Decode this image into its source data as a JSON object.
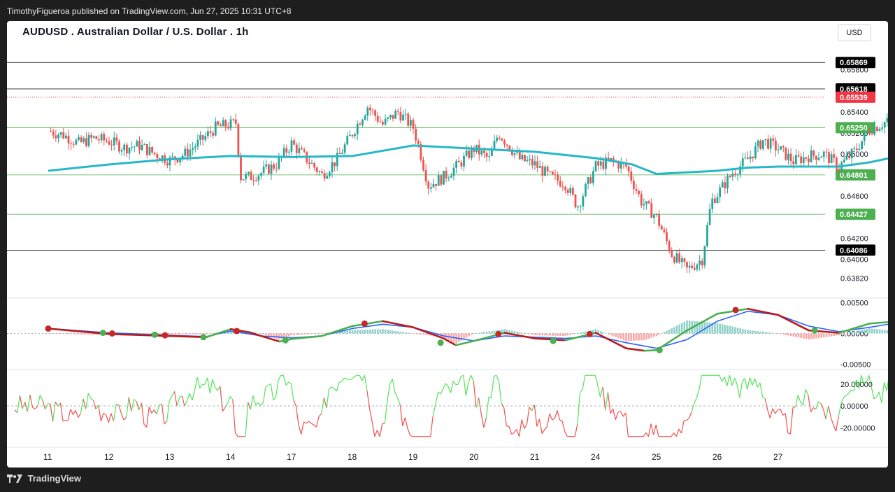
{
  "header": {
    "published": "TimothyFigueroa published on TradingView.com, Jun 27, 2025 10:31 UTC+8"
  },
  "footer": {
    "brand": "TradingView"
  },
  "chart_data": [
    {
      "type": "candlestick",
      "title": "AUDUSD . Australian Dollar / U.S. Dollar . 1h",
      "currency_label": "USD",
      "ylim": [
        0.6365,
        0.6605
      ],
      "y_ticks": [
        "0.65800",
        "0.65400",
        "0.65200",
        "0.65000",
        "0.64600",
        "0.64200",
        "0.64000",
        "0.63820"
      ],
      "x_ticks": [
        "11",
        "12",
        "13",
        "14",
        "17",
        "18",
        "19",
        "20",
        "21",
        "24",
        "25",
        "26",
        "27"
      ],
      "price_levels": [
        {
          "value": "0.65869",
          "color": "#000000"
        },
        {
          "value": "0.65618",
          "color": "#000000"
        },
        {
          "value": "0.65539",
          "color": "#f23645"
        },
        {
          "value": "0.65250",
          "color": "#4caf50"
        },
        {
          "value": "0.64801",
          "color": "#4caf50"
        },
        {
          "value": "0.64427",
          "color": "#4caf50"
        },
        {
          "value": "0.64086",
          "color": "#000000"
        }
      ],
      "moving_average": [
        [
          0,
          0.6484
        ],
        [
          1,
          0.649
        ],
        [
          2,
          0.6495
        ],
        [
          3,
          0.6498
        ],
        [
          4,
          0.6497
        ],
        [
          5,
          0.6498
        ],
        [
          6,
          0.6508
        ],
        [
          7,
          0.6505
        ],
        [
          8,
          0.6502
        ],
        [
          9,
          0.6496
        ],
        [
          9.6,
          0.649
        ],
        [
          10,
          0.6481
        ],
        [
          11,
          0.6484
        ],
        [
          11.5,
          0.6487
        ],
        [
          12,
          0.6488
        ],
        [
          13,
          0.6488
        ],
        [
          13.5,
          0.6492
        ],
        [
          14,
          0.6498
        ]
      ],
      "candle_path": [
        [
          0,
          0.6522
        ],
        [
          0.25,
          0.6518
        ],
        [
          0.5,
          0.651
        ],
        [
          0.75,
          0.6515
        ],
        [
          1,
          0.6512
        ],
        [
          1.25,
          0.6506
        ],
        [
          1.5,
          0.6508
        ],
        [
          1.75,
          0.65
        ],
        [
          2,
          0.6494
        ],
        [
          2.25,
          0.65
        ],
        [
          2.5,
          0.6512
        ],
        [
          2.75,
          0.6525
        ],
        [
          3,
          0.6528
        ],
        [
          3.1,
          0.653
        ],
        [
          3.15,
          0.6478
        ],
        [
          3.3,
          0.6478
        ],
        [
          3.5,
          0.6482
        ],
        [
          3.75,
          0.649
        ],
        [
          4,
          0.651
        ],
        [
          4.25,
          0.6495
        ],
        [
          4.5,
          0.648
        ],
        [
          4.75,
          0.6495
        ],
        [
          5,
          0.652
        ],
        [
          5.25,
          0.6545
        ],
        [
          5.5,
          0.6528
        ],
        [
          5.75,
          0.654
        ],
        [
          6,
          0.6525
        ],
        [
          6.1,
          0.6505
        ],
        [
          6.25,
          0.647
        ],
        [
          6.5,
          0.6478
        ],
        [
          6.75,
          0.649
        ],
        [
          7,
          0.6505
        ],
        [
          7.25,
          0.6495
        ],
        [
          7.4,
          0.652
        ],
        [
          7.75,
          0.6495
        ],
        [
          8,
          0.649
        ],
        [
          8.25,
          0.6478
        ],
        [
          8.5,
          0.6472
        ],
        [
          8.7,
          0.645
        ],
        [
          9,
          0.6488
        ],
        [
          9.25,
          0.6493
        ],
        [
          9.5,
          0.6488
        ],
        [
          9.75,
          0.6455
        ],
        [
          10,
          0.644
        ],
        [
          10.25,
          0.6405
        ],
        [
          10.5,
          0.639
        ],
        [
          10.75,
          0.64
        ],
        [
          10.9,
          0.6455
        ],
        [
          11,
          0.6462
        ],
        [
          11.25,
          0.6482
        ],
        [
          11.5,
          0.6495
        ],
        [
          11.75,
          0.6513
        ],
        [
          12,
          0.6505
        ],
        [
          12.25,
          0.6493
        ],
        [
          12.5,
          0.6498
        ],
        [
          12.75,
          0.65
        ],
        [
          13,
          0.6488
        ],
        [
          13.25,
          0.6502
        ],
        [
          13.5,
          0.6523
        ],
        [
          13.75,
          0.653
        ],
        [
          14,
          0.6548
        ],
        [
          14.2,
          0.656
        ],
        [
          14.35,
          0.6548
        ],
        [
          14.6,
          0.6555
        ]
      ]
    },
    {
      "type": "line",
      "name": "oscillator",
      "ylim": [
        -0.0055,
        0.0055
      ],
      "y_ticks": [
        "0.00500",
        "0.00000",
        "-0.00500"
      ],
      "fast": [
        [
          0,
          0.0008
        ],
        [
          1,
          -0.0001
        ],
        [
          2,
          -0.0004
        ],
        [
          2.6,
          -0.0006
        ],
        [
          3,
          0.0007
        ],
        [
          3.3,
          0.0002
        ],
        [
          3.8,
          -0.0013
        ],
        [
          4,
          -0.0009
        ],
        [
          4.5,
          -0.0004
        ],
        [
          5,
          0.0012
        ],
        [
          5.5,
          0.002
        ],
        [
          6,
          0.001
        ],
        [
          6.5,
          -0.0008
        ],
        [
          6.7,
          -0.0019
        ],
        [
          7,
          -0.0012
        ],
        [
          7.5,
          0.0001
        ],
        [
          8,
          -0.0008
        ],
        [
          8.5,
          -0.0011
        ],
        [
          9,
          0.0001
        ],
        [
          9.5,
          -0.0024
        ],
        [
          9.8,
          -0.0028
        ],
        [
          10,
          -0.0027
        ],
        [
          10.5,
          0.0005
        ],
        [
          11,
          0.0032
        ],
        [
          11.5,
          0.004
        ],
        [
          12,
          0.003
        ],
        [
          12.5,
          0.0005
        ],
        [
          13,
          0.0001
        ],
        [
          13.5,
          0.0016
        ],
        [
          14,
          0.002
        ],
        [
          14.6,
          0.002
        ]
      ],
      "slow": [
        [
          0,
          0.0008
        ],
        [
          1,
          0.0001
        ],
        [
          2,
          -0.0003
        ],
        [
          2.6,
          -0.0005
        ],
        [
          3,
          0.0004
        ],
        [
          3.5,
          -0.0004
        ],
        [
          4,
          -0.0007
        ],
        [
          4.5,
          -0.0004
        ],
        [
          5,
          0.0008
        ],
        [
          5.5,
          0.0015
        ],
        [
          6,
          0.001
        ],
        [
          6.5,
          -0.0004
        ],
        [
          7,
          -0.0012
        ],
        [
          7.5,
          -0.0004
        ],
        [
          8,
          -0.0006
        ],
        [
          8.5,
          -0.0008
        ],
        [
          9,
          -0.0004
        ],
        [
          9.5,
          -0.0015
        ],
        [
          10,
          -0.0024
        ],
        [
          10.5,
          -0.001
        ],
        [
          11,
          0.002
        ],
        [
          11.5,
          0.0036
        ],
        [
          12,
          0.003
        ],
        [
          12.5,
          0.0012
        ],
        [
          13,
          0.0003
        ],
        [
          13.5,
          0.001
        ],
        [
          14,
          0.0018
        ],
        [
          14.6,
          0.0019
        ]
      ],
      "cross_points": [
        {
          "x": 0.0,
          "y": 0.0008,
          "color": "#c62828"
        },
        {
          "x": 0.9,
          "y": 0.0001,
          "color": "#4caf50"
        },
        {
          "x": 1.05,
          "y": 0.0,
          "color": "#c62828"
        },
        {
          "x": 1.75,
          "y": -0.0002,
          "color": "#4caf50"
        },
        {
          "x": 1.92,
          "y": -0.0003,
          "color": "#c62828"
        },
        {
          "x": 2.55,
          "y": -0.0006,
          "color": "#4caf50"
        },
        {
          "x": 3.1,
          "y": 0.0004,
          "color": "#c62828"
        },
        {
          "x": 3.9,
          "y": -0.0011,
          "color": "#4caf50"
        },
        {
          "x": 5.2,
          "y": 0.0016,
          "color": "#c62828"
        },
        {
          "x": 6.45,
          "y": -0.0015,
          "color": "#4caf50"
        },
        {
          "x": 7.4,
          "y": -0.0001,
          "color": "#c62828"
        },
        {
          "x": 8.3,
          "y": -0.0012,
          "color": "#4caf50"
        },
        {
          "x": 8.9,
          "y": -0.0001,
          "color": "#c62828"
        },
        {
          "x": 10.05,
          "y": -0.0027,
          "color": "#4caf50"
        },
        {
          "x": 11.3,
          "y": 0.0038,
          "color": "#c62828"
        },
        {
          "x": 12.6,
          "y": 0.0005,
          "color": "#4caf50"
        }
      ]
    },
    {
      "type": "line",
      "name": "momentum",
      "ylim": [
        -32,
        32
      ],
      "y_ticks": [
        "20.00000",
        "0.00000",
        "-20.00000"
      ]
    }
  ],
  "colors": {
    "up": "#26a69a",
    "down": "#ef5350",
    "ma": "#25b8c6",
    "fast": "#2962ff",
    "slow": "#8b1a1a",
    "osc_up": "#4caf50",
    "osc_down": "#b71c1c",
    "mom_up": "#54e35a",
    "mom_down": "#f0524f"
  }
}
